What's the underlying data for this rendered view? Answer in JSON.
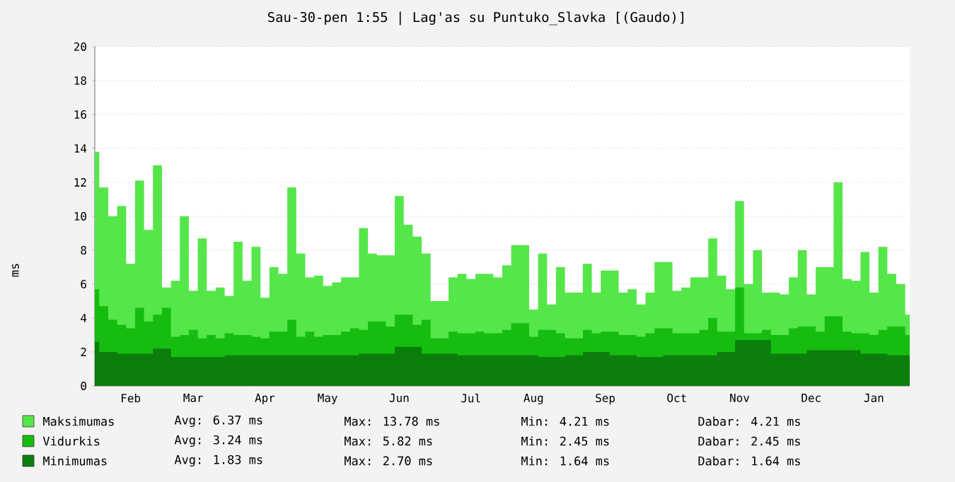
{
  "chart_data": {
    "type": "area",
    "title": "Sau-30-pen 1:55 | Lag'as su Puntuko_Slavka [(Gaudo)]",
    "ylabel": "ms",
    "ylim": [
      0,
      20
    ],
    "yticks": [
      0,
      2,
      4,
      6,
      8,
      10,
      12,
      14,
      16,
      18,
      20
    ],
    "categories": [
      null,
      null,
      null,
      null,
      "Feb",
      null,
      null,
      null,
      null,
      null,
      null,
      "Mar",
      null,
      null,
      null,
      null,
      null,
      null,
      null,
      "Apr",
      null,
      null,
      null,
      null,
      null,
      null,
      "May",
      null,
      null,
      null,
      null,
      null,
      null,
      null,
      "Jun",
      null,
      null,
      null,
      null,
      null,
      null,
      null,
      "Jul",
      null,
      null,
      null,
      null,
      null,
      null,
      "Aug",
      null,
      null,
      null,
      null,
      null,
      null,
      null,
      "Sep",
      null,
      null,
      null,
      null,
      null,
      null,
      null,
      "Oct",
      null,
      null,
      null,
      null,
      null,
      null,
      "Nov",
      null,
      null,
      null,
      null,
      null,
      null,
      null,
      "Dec",
      null,
      null,
      null,
      null,
      null,
      null,
      "Jan",
      null,
      null,
      null,
      null
    ],
    "grid": "y",
    "legend": "bottom",
    "series": [
      {
        "name": "Maksimumas",
        "color": "#55e64a",
        "values": [
          13.8,
          11.7,
          10.0,
          10.6,
          7.2,
          12.1,
          9.2,
          13.0,
          5.8,
          6.2,
          10.0,
          5.6,
          8.7,
          5.6,
          5.8,
          5.3,
          8.5,
          6.2,
          8.2,
          5.2,
          7.0,
          6.6,
          11.7,
          7.8,
          6.4,
          6.5,
          5.9,
          6.1,
          6.4,
          6.4,
          9.3,
          7.8,
          7.7,
          7.7,
          11.2,
          9.5,
          8.8,
          7.8,
          5.0,
          5.0,
          6.4,
          6.6,
          6.3,
          6.6,
          6.6,
          6.4,
          7.1,
          8.3,
          8.3,
          4.5,
          7.8,
          4.8,
          7.0,
          5.5,
          5.5,
          7.2,
          5.5,
          6.8,
          6.8,
          5.5,
          5.7,
          4.8,
          5.5,
          7.3,
          7.3,
          5.6,
          5.8,
          6.4,
          6.4,
          8.7,
          6.5,
          5.7,
          10.9,
          6.0,
          8.0,
          5.5,
          5.5,
          5.4,
          6.4,
          8.0,
          5.4,
          7.0,
          7.0,
          12.0,
          6.3,
          6.2,
          7.9,
          5.5,
          8.2,
          6.6,
          6.0,
          4.2
        ]
      },
      {
        "name": "Vidurkis",
        "color": "#16bd10",
        "values": [
          5.7,
          4.7,
          3.9,
          3.6,
          3.4,
          4.6,
          3.8,
          4.2,
          4.6,
          2.9,
          3.0,
          3.3,
          2.8,
          3.0,
          2.8,
          3.1,
          3.0,
          3.0,
          2.9,
          2.8,
          3.2,
          3.2,
          3.9,
          2.9,
          3.2,
          2.9,
          3.0,
          3.0,
          3.2,
          3.4,
          3.3,
          3.8,
          3.8,
          3.5,
          4.2,
          4.2,
          3.6,
          3.9,
          2.8,
          2.8,
          3.2,
          3.1,
          3.1,
          3.2,
          3.1,
          3.1,
          3.3,
          3.7,
          3.7,
          2.9,
          3.3,
          3.3,
          3.1,
          2.8,
          2.8,
          3.3,
          3.1,
          3.2,
          3.2,
          3.0,
          3.0,
          2.9,
          3.1,
          3.4,
          3.4,
          3.1,
          3.1,
          3.1,
          3.3,
          4.0,
          3.2,
          3.2,
          5.8,
          3.1,
          3.1,
          3.3,
          3.0,
          3.0,
          3.4,
          3.5,
          3.5,
          3.2,
          4.1,
          4.1,
          3.2,
          3.1,
          3.1,
          3.0,
          3.3,
          3.5,
          3.5,
          3.0
        ]
      },
      {
        "name": "Minimumas",
        "color": "#0b7e0b",
        "values": [
          2.6,
          2.0,
          2.0,
          1.9,
          1.9,
          1.9,
          1.9,
          2.2,
          2.2,
          1.7,
          1.7,
          1.7,
          1.7,
          1.7,
          1.7,
          1.8,
          1.8,
          1.8,
          1.8,
          1.8,
          1.8,
          1.8,
          1.8,
          1.8,
          1.8,
          1.8,
          1.8,
          1.8,
          1.8,
          1.8,
          1.9,
          1.9,
          1.9,
          1.9,
          2.3,
          2.3,
          2.3,
          1.9,
          1.9,
          1.9,
          1.9,
          1.8,
          1.8,
          1.8,
          1.8,
          1.8,
          1.8,
          1.8,
          1.8,
          1.8,
          1.7,
          1.7,
          1.7,
          1.8,
          1.8,
          2.0,
          2.0,
          2.0,
          1.8,
          1.8,
          1.8,
          1.7,
          1.7,
          1.7,
          1.8,
          1.8,
          1.8,
          1.8,
          1.8,
          1.8,
          2.0,
          2.0,
          2.7,
          2.7,
          2.7,
          2.7,
          1.9,
          1.9,
          1.9,
          1.9,
          2.1,
          2.1,
          2.1,
          2.1,
          2.1,
          2.1,
          1.9,
          1.9,
          1.9,
          1.8,
          1.8,
          1.8
        ]
      }
    ],
    "annotations": [
      "Avg: 6.37 ms",
      "Max: 13.78 ms",
      "Min: 4.21 ms",
      "Dabar: 4.21 ms",
      "Avg: 3.24 ms",
      "Max: 5.82 ms",
      "Min: 2.45 ms",
      "Dabar: 2.45 ms",
      "Avg: 1.83 ms",
      "Max: 2.70 ms",
      "Min: 1.64 ms",
      "Dabar: 1.64 ms"
    ]
  }
}
